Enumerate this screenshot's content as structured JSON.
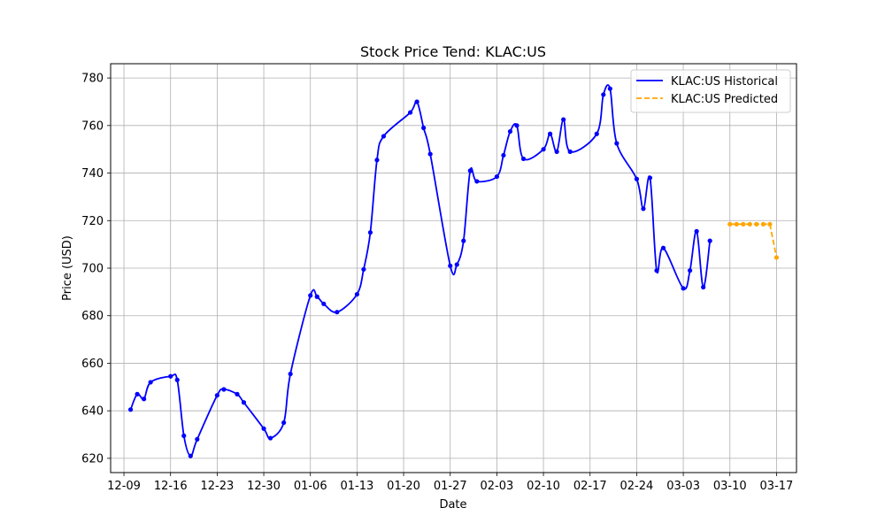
{
  "chart_data": {
    "type": "line",
    "title": "Stock Price Tend: KLAC:US",
    "xlabel": "Date",
    "ylabel": "Price (USD)",
    "x_ticks": [
      "12-09",
      "12-16",
      "12-23",
      "12-30",
      "01-06",
      "01-13",
      "01-20",
      "01-27",
      "02-03",
      "02-10",
      "02-17",
      "02-24",
      "03-03",
      "03-10",
      "03-17"
    ],
    "y_ticks": [
      620,
      640,
      660,
      680,
      700,
      720,
      740,
      760,
      780
    ],
    "ylim": [
      614,
      786
    ],
    "xlim": [
      "2024-12-07",
      "2025-03-20"
    ],
    "grid": true,
    "legend_position": "top-right",
    "colors": {
      "historical": "#0000ff",
      "predicted": "#ffa500"
    },
    "series": [
      {
        "name": "KLAC:US Historical",
        "style": "solid-smooth-with-markers",
        "points": [
          [
            "2024-12-10",
            640.5
          ],
          [
            "2024-12-11",
            647.0
          ],
          [
            "2024-12-12",
            645.0
          ],
          [
            "2024-12-13",
            652.0
          ],
          [
            "2024-12-16",
            654.5
          ],
          [
            "2024-12-17",
            653.0
          ],
          [
            "2024-12-18",
            629.5
          ],
          [
            "2024-12-19",
            621.0
          ],
          [
            "2024-12-20",
            628.0
          ],
          [
            "2024-12-23",
            646.5
          ],
          [
            "2024-12-24",
            649.0
          ],
          [
            "2024-12-26",
            647.0
          ],
          [
            "2024-12-27",
            643.5
          ],
          [
            "2024-12-30",
            632.5
          ],
          [
            "2024-12-31",
            628.5
          ],
          [
            "2025-01-02",
            635.0
          ],
          [
            "2025-01-03",
            655.5
          ],
          [
            "2025-01-06",
            688.5
          ],
          [
            "2025-01-07",
            688.0
          ],
          [
            "2025-01-08",
            685.0
          ],
          [
            "2025-01-10",
            681.5
          ],
          [
            "2025-01-13",
            689.0
          ],
          [
            "2025-01-14",
            699.5
          ],
          [
            "2025-01-15",
            715.0
          ],
          [
            "2025-01-16",
            745.5
          ],
          [
            "2025-01-17",
            755.5
          ],
          [
            "2025-01-21",
            765.5
          ],
          [
            "2025-01-22",
            770.0
          ],
          [
            "2025-01-23",
            759.0
          ],
          [
            "2025-01-24",
            748.0
          ],
          [
            "2025-01-27",
            701.0
          ],
          [
            "2025-01-28",
            701.5
          ],
          [
            "2025-01-29",
            711.5
          ],
          [
            "2025-01-30",
            741.0
          ],
          [
            "2025-01-31",
            736.5
          ],
          [
            "2025-02-03",
            738.5
          ],
          [
            "2025-02-04",
            747.5
          ],
          [
            "2025-02-05",
            757.5
          ],
          [
            "2025-02-06",
            760.0
          ],
          [
            "2025-02-07",
            746.0
          ],
          [
            "2025-02-10",
            750.0
          ],
          [
            "2025-02-11",
            756.5
          ],
          [
            "2025-02-12",
            749.0
          ],
          [
            "2025-02-13",
            762.5
          ],
          [
            "2025-02-14",
            749.0
          ],
          [
            "2025-02-18",
            756.5
          ],
          [
            "2025-02-19",
            773.0
          ],
          [
            "2025-02-20",
            775.5
          ],
          [
            "2025-02-21",
            752.5
          ],
          [
            "2025-02-24",
            737.5
          ],
          [
            "2025-02-25",
            725.0
          ],
          [
            "2025-02-26",
            738.0
          ],
          [
            "2025-02-27",
            699.0
          ],
          [
            "2025-02-28",
            708.5
          ],
          [
            "2025-03-03",
            691.5
          ],
          [
            "2025-03-04",
            699.0
          ],
          [
            "2025-03-05",
            715.5
          ],
          [
            "2025-03-06",
            692.0
          ],
          [
            "2025-03-07",
            711.5
          ]
        ]
      },
      {
        "name": "KLAC:US Predicted",
        "style": "dashed-with-markers",
        "points": [
          [
            "2025-03-10",
            718.5
          ],
          [
            "2025-03-11",
            718.5
          ],
          [
            "2025-03-12",
            718.5
          ],
          [
            "2025-03-13",
            718.5
          ],
          [
            "2025-03-14",
            718.5
          ],
          [
            "2025-03-15",
            718.5
          ],
          [
            "2025-03-16",
            718.5
          ],
          [
            "2025-03-17",
            704.5
          ]
        ]
      }
    ]
  }
}
